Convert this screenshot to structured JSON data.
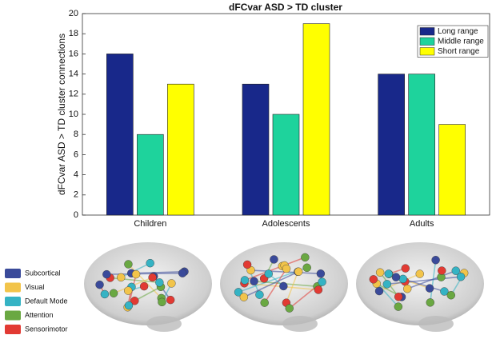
{
  "chart_data": {
    "type": "bar",
    "title": "dFCvar ASD > TD cluster",
    "ylabel": "dFCvar ASD > TD cluster connections",
    "categories": [
      "Children",
      "Adolescents",
      "Adults"
    ],
    "series": [
      {
        "name": "Long range",
        "color": "#18288a",
        "values": [
          16,
          13,
          14
        ]
      },
      {
        "name": "Middle range",
        "color": "#1ed39c",
        "values": [
          8,
          10,
          14
        ]
      },
      {
        "name": "Short range",
        "color": "#ffff00",
        "values": [
          13,
          19,
          9
        ]
      }
    ],
    "ylim": [
      0,
      20
    ],
    "yticks": [
      0,
      2,
      4,
      6,
      8,
      10,
      12,
      14,
      16,
      18,
      20
    ],
    "legend": "upper right"
  },
  "brain_legend": [
    {
      "label": "Subcortical",
      "color": "#3a4a9a"
    },
    {
      "label": "Visual",
      "color": "#f2c44a"
    },
    {
      "label": "Default Mode",
      "color": "#35b3c4"
    },
    {
      "label": "Attention",
      "color": "#6aa842"
    },
    {
      "label": "Sensorimotor",
      "color": "#e23a33"
    }
  ]
}
